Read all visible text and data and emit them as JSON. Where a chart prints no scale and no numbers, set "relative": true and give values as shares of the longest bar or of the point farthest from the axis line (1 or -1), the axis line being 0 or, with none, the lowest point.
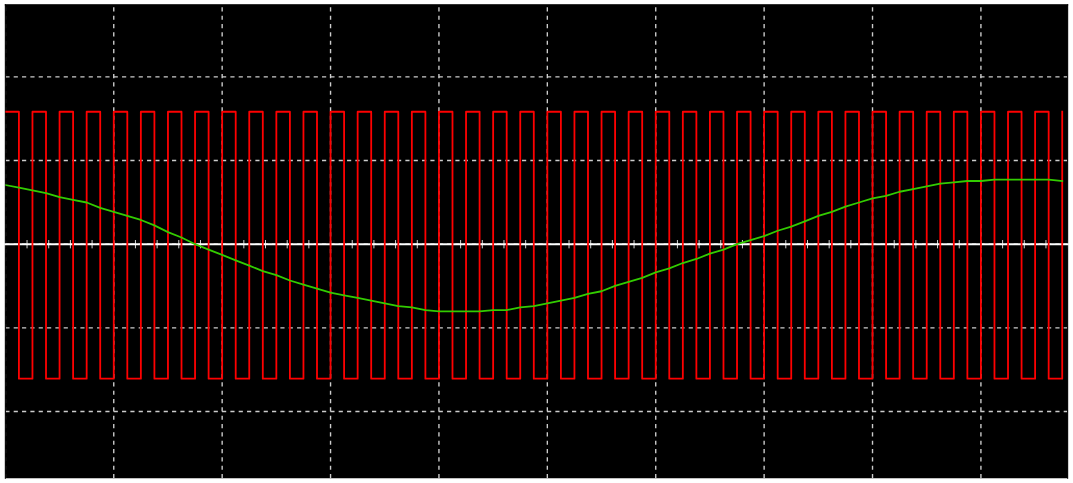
{
  "chart_data": {
    "type": "line",
    "relative": true,
    "grid": true,
    "line_style": "solid",
    "categories": [
      null,
      null,
      null,
      null,
      null,
      null,
      null,
      null,
      null,
      null,
      null,
      null,
      null,
      null,
      null,
      null,
      null,
      null,
      null,
      null,
      null,
      null,
      null,
      null,
      null,
      null,
      null,
      null,
      null,
      null,
      null,
      null,
      null,
      null,
      null,
      null,
      null,
      null,
      null,
      null,
      null,
      null,
      null,
      null,
      null,
      null,
      null,
      null,
      null,
      null,
      null,
      null,
      null,
      null,
      null,
      null,
      null,
      null,
      null,
      null,
      null,
      null,
      null,
      null,
      null,
      null,
      null,
      null,
      null,
      null,
      null,
      null,
      null,
      null,
      null,
      null,
      null,
      null,
      null
    ],
    "series": [
      {
        "type": "step",
        "color": "#ff0000",
        "values": [
          0.985,
          -1,
          0.985,
          -1,
          0.985,
          -1,
          0.985,
          -1,
          0.985,
          -1,
          0.985,
          -1,
          0.985,
          -1,
          0.985,
          -1,
          0.985,
          -1,
          0.985,
          -1,
          0.985,
          -1,
          0.985,
          -1,
          0.985,
          -1,
          0.985,
          -1,
          0.985,
          -1,
          0.985,
          -1,
          0.985,
          -1,
          0.985,
          -1,
          0.985,
          -1,
          0.985,
          -1,
          0.985,
          -1,
          0.985,
          -1,
          0.985,
          -1,
          0.985,
          -1,
          0.985,
          -1,
          0.985,
          -1,
          0.985,
          -1,
          0.985,
          -1,
          0.985,
          -1,
          0.985,
          -1,
          0.985,
          -1,
          0.985,
          -1,
          0.985,
          -1,
          0.985,
          -1,
          0.985,
          -1,
          0.985,
          -1,
          0.985,
          -1,
          0.985,
          -1,
          0.985,
          -1,
          0.985
        ]
      },
      {
        "color": "#33cc00",
        "values": [
          0.44,
          0.42,
          0.4,
          0.38,
          0.35,
          0.33,
          0.31,
          0.27,
          0.24,
          0.21,
          0.18,
          0.14,
          0.09,
          0.05,
          0,
          -0.04,
          -0.08,
          -0.12,
          -0.16,
          -0.2,
          -0.23,
          -0.27,
          -0.3,
          -0.33,
          -0.36,
          -0.38,
          -0.4,
          -0.42,
          -0.44,
          -0.46,
          -0.47,
          -0.49,
          -0.5,
          -0.5,
          -0.5,
          -0.5,
          -0.49,
          -0.49,
          -0.47,
          -0.46,
          -0.44,
          -0.42,
          -0.4,
          -0.37,
          -0.35,
          -0.31,
          -0.28,
          -0.25,
          -0.21,
          -0.18,
          -0.14,
          -0.11,
          -0.07,
          -0.04,
          0,
          0.03,
          0.06,
          0.1,
          0.13,
          0.17,
          0.21,
          0.24,
          0.28,
          0.31,
          0.34,
          0.36,
          0.39,
          0.41,
          0.43,
          0.45,
          0.46,
          0.47,
          0.47,
          0.48,
          0.48,
          0.48,
          0.48,
          0.48,
          0.47
        ]
      }
    ]
  }
}
